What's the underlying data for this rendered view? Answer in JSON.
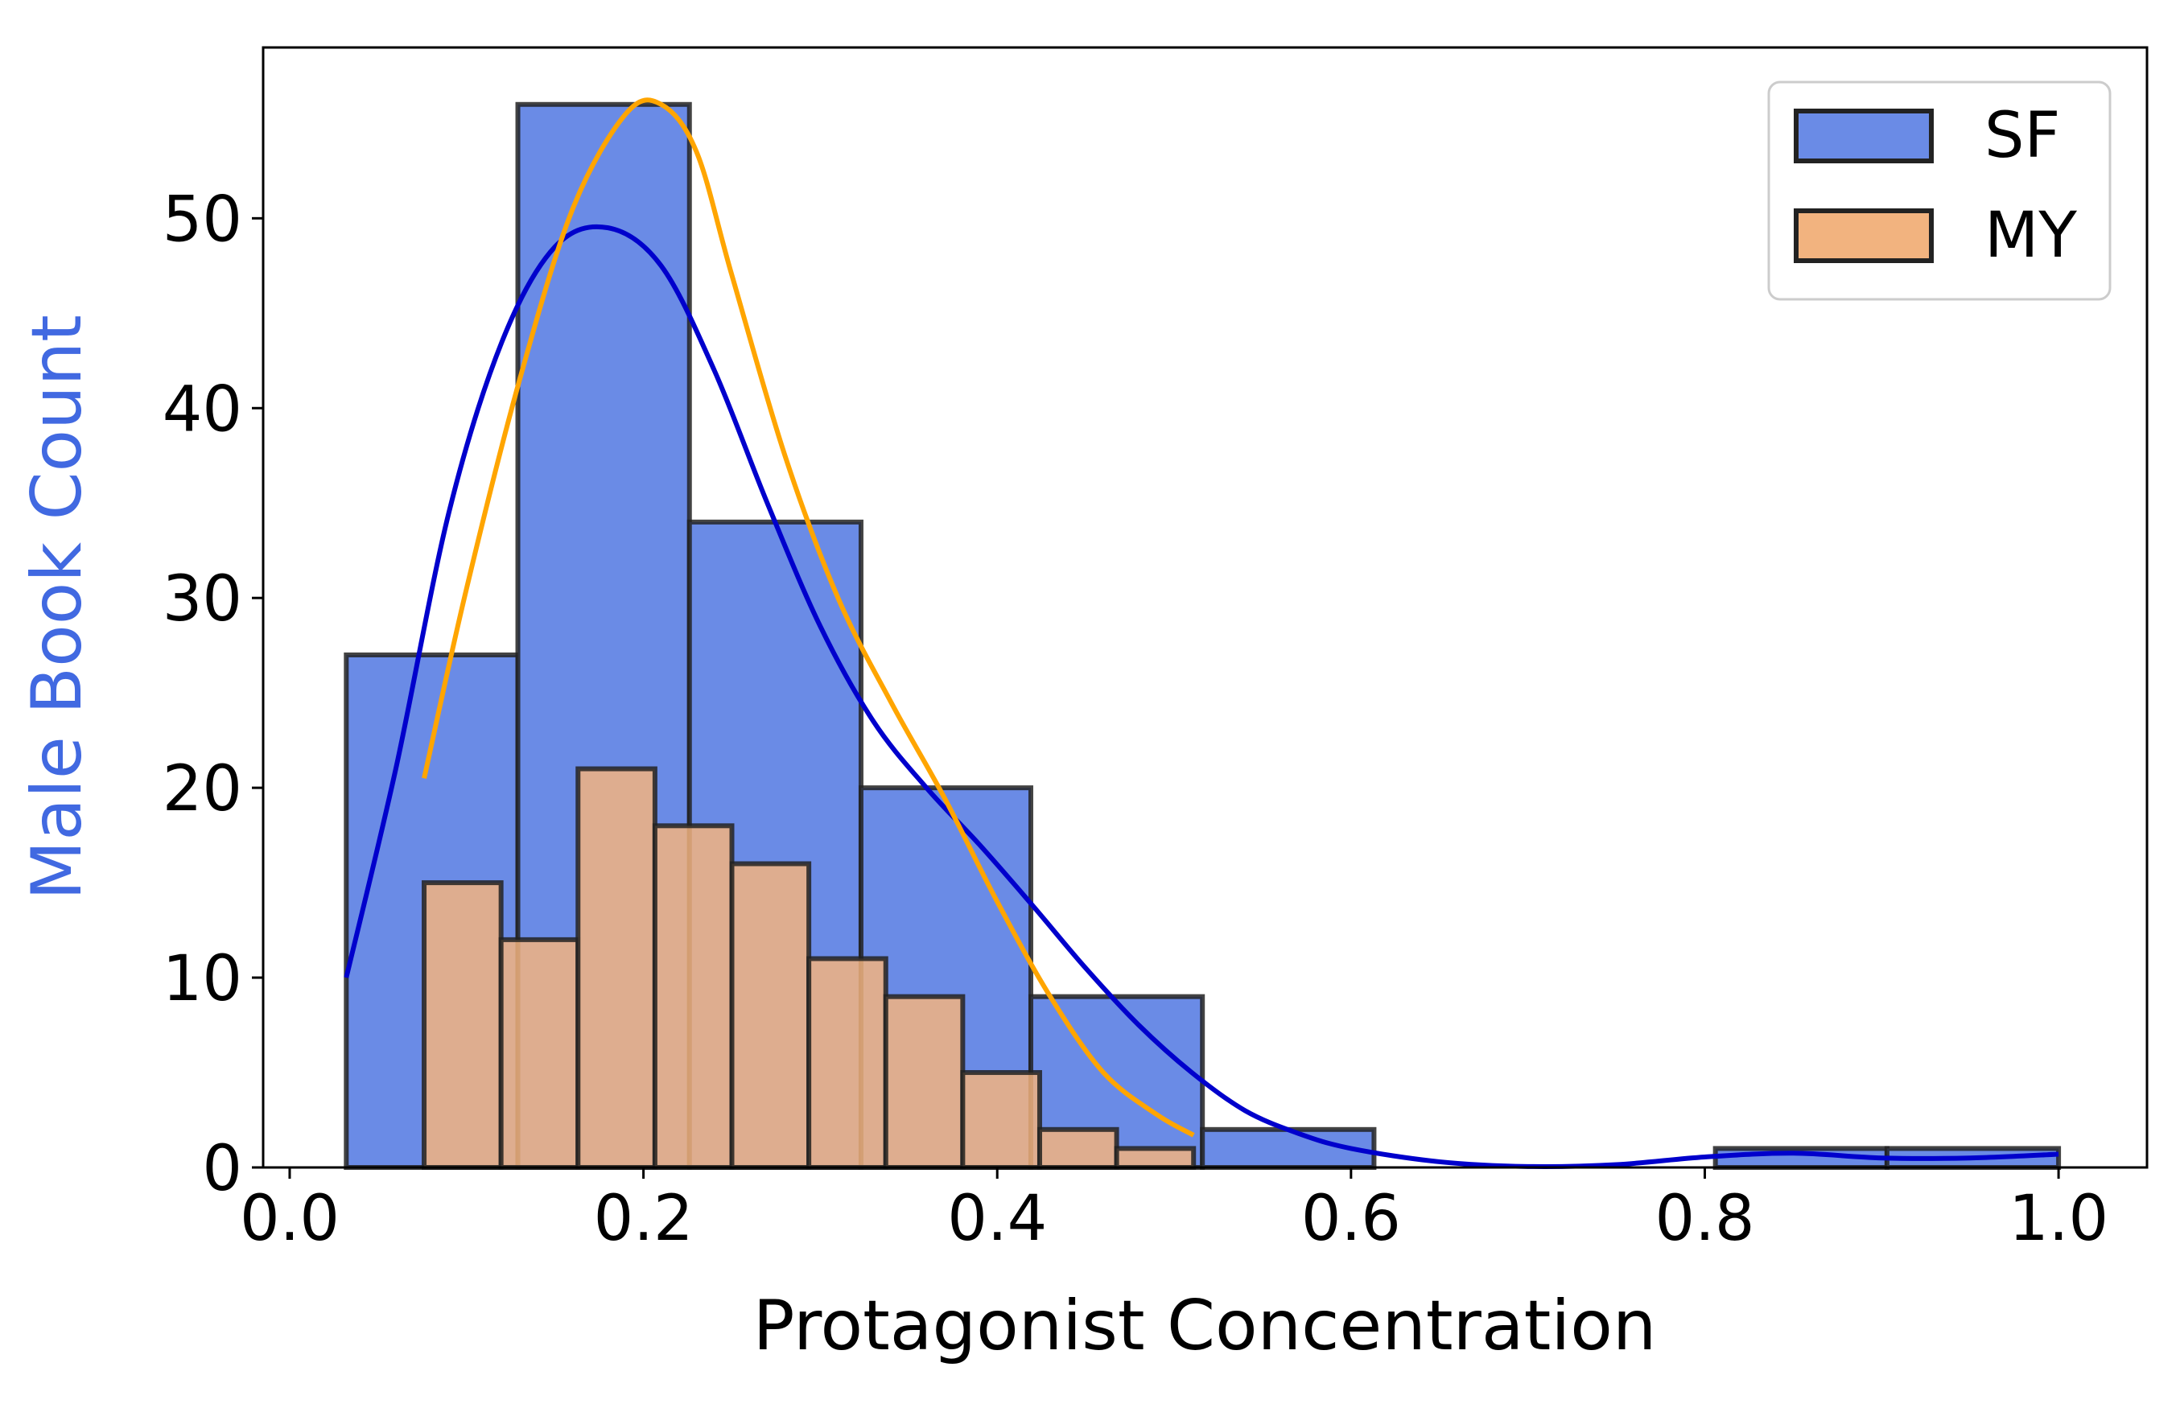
{
  "chart_data": {
    "type": "histogram",
    "xlabel": "Protagonist Concentration",
    "ylabel": "Male Book Count",
    "xlim": [
      -0.015,
      1.05
    ],
    "ylim": [
      0,
      59
    ],
    "xticks": [
      0.0,
      0.2,
      0.4,
      0.6,
      0.8,
      1.0
    ],
    "xtick_labels": [
      "0.0",
      "0.2",
      "0.4",
      "0.6",
      "0.8",
      "1.0"
    ],
    "yticks": [
      0,
      10,
      20,
      30,
      40,
      50
    ],
    "ytick_labels": [
      "0",
      "10",
      "20",
      "30",
      "40",
      "50"
    ],
    "legend": {
      "position": "top-right",
      "entries": [
        "SF",
        "MY"
      ]
    },
    "colors": {
      "sf_fill": "#6a8be6",
      "my_fill": "#f2b37f",
      "bar_edge": "#222222",
      "sf_kde": "#0000cc",
      "my_kde": "#ffa500",
      "ylabel": "#4169e1"
    },
    "series": [
      {
        "name": "SF",
        "bin_edges": [
          0.032,
          0.129,
          0.226,
          0.323,
          0.419,
          0.516,
          0.613,
          0.71,
          0.806,
          0.903,
          1.0
        ],
        "counts": [
          27,
          56,
          34,
          20,
          9,
          2,
          0,
          0,
          1,
          1
        ],
        "kde": {
          "x": [
            0.032,
            0.06,
            0.09,
            0.12,
            0.15,
            0.18,
            0.21,
            0.24,
            0.27,
            0.3,
            0.33,
            0.36,
            0.39,
            0.42,
            0.45,
            0.48,
            0.51,
            0.54,
            0.57,
            0.6,
            0.65,
            0.7,
            0.75,
            0.8,
            0.85,
            0.9,
            0.95,
            1.0
          ],
          "y": [
            10,
            21,
            34.5,
            43.5,
            48.5,
            49.5,
            47.5,
            42,
            35,
            28.5,
            23.5,
            20,
            17,
            13.8,
            10.5,
            7.5,
            5,
            3,
            1.8,
            1,
            0.3,
            0.05,
            0.15,
            0.55,
            0.75,
            0.5,
            0.5,
            0.7
          ]
        }
      },
      {
        "name": "MY",
        "bin_edges": [
          0.076,
          0.1195,
          0.163,
          0.2065,
          0.25,
          0.2935,
          0.337,
          0.3805,
          0.424,
          0.4675,
          0.511
        ],
        "counts": [
          15,
          12,
          21,
          18,
          16,
          11,
          9,
          5,
          2,
          1
        ],
        "kde": {
          "x": [
            0.076,
            0.1,
            0.13,
            0.16,
            0.19,
            0.21,
            0.23,
            0.25,
            0.28,
            0.31,
            0.34,
            0.37,
            0.4,
            0.43,
            0.46,
            0.49,
            0.511
          ],
          "y": [
            20.5,
            30.5,
            41.5,
            50.5,
            55.5,
            56,
            53.5,
            47,
            37.5,
            30,
            24.5,
            19.5,
            14,
            9,
            5,
            2.8,
            1.7
          ]
        }
      }
    ]
  }
}
